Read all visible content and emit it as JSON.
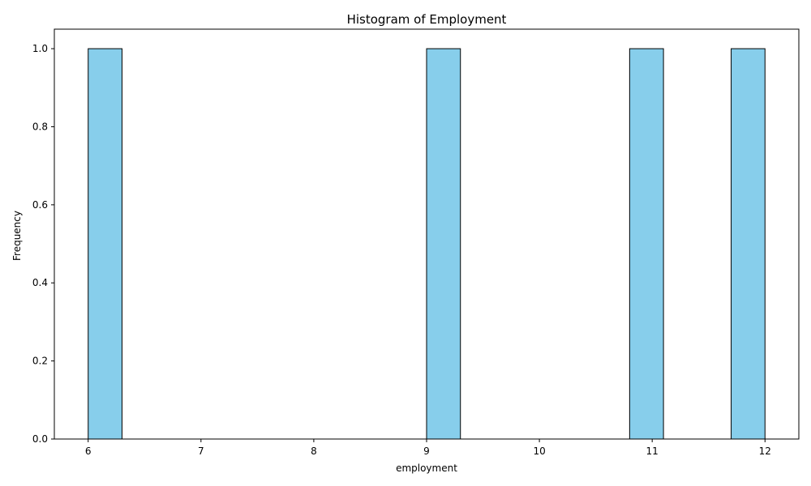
{
  "chart_data": {
    "type": "bar",
    "title": "Histogram of Employment",
    "xlabel": "employment",
    "ylabel": "Frequency",
    "bins": [
      {
        "start": 6.0,
        "end": 6.3,
        "count": 1
      },
      {
        "start": 6.3,
        "end": 6.6,
        "count": 0
      },
      {
        "start": 6.6,
        "end": 6.9,
        "count": 0
      },
      {
        "start": 6.9,
        "end": 7.2,
        "count": 0
      },
      {
        "start": 7.2,
        "end": 7.5,
        "count": 0
      },
      {
        "start": 7.5,
        "end": 7.8,
        "count": 0
      },
      {
        "start": 7.8,
        "end": 8.1,
        "count": 0
      },
      {
        "start": 8.1,
        "end": 8.4,
        "count": 0
      },
      {
        "start": 8.4,
        "end": 8.7,
        "count": 0
      },
      {
        "start": 8.7,
        "end": 9.0,
        "count": 0
      },
      {
        "start": 9.0,
        "end": 9.3,
        "count": 1
      },
      {
        "start": 9.3,
        "end": 9.6,
        "count": 0
      },
      {
        "start": 9.6,
        "end": 9.9,
        "count": 0
      },
      {
        "start": 9.9,
        "end": 10.2,
        "count": 0
      },
      {
        "start": 10.2,
        "end": 10.5,
        "count": 0
      },
      {
        "start": 10.5,
        "end": 10.8,
        "count": 0
      },
      {
        "start": 10.8,
        "end": 11.1,
        "count": 1
      },
      {
        "start": 11.1,
        "end": 11.4,
        "count": 0
      },
      {
        "start": 11.4,
        "end": 11.7,
        "count": 0
      },
      {
        "start": 11.7,
        "end": 12.0,
        "count": 1
      }
    ],
    "xlim": [
      5.7,
      12.3
    ],
    "ylim": [
      0,
      1.05
    ],
    "xticks": [
      "6",
      "7",
      "8",
      "9",
      "10",
      "11",
      "12"
    ],
    "xtick_values": [
      6,
      7,
      8,
      9,
      10,
      11,
      12
    ],
    "yticks": [
      "0.0",
      "0.2",
      "0.4",
      "0.6",
      "0.8",
      "1.0"
    ],
    "ytick_values": [
      0.0,
      0.2,
      0.4,
      0.6,
      0.8,
      1.0
    ],
    "grid": false,
    "legend": "none",
    "colors": {
      "bar_fill": "#87CEEB",
      "bar_edge": "#000000"
    }
  }
}
